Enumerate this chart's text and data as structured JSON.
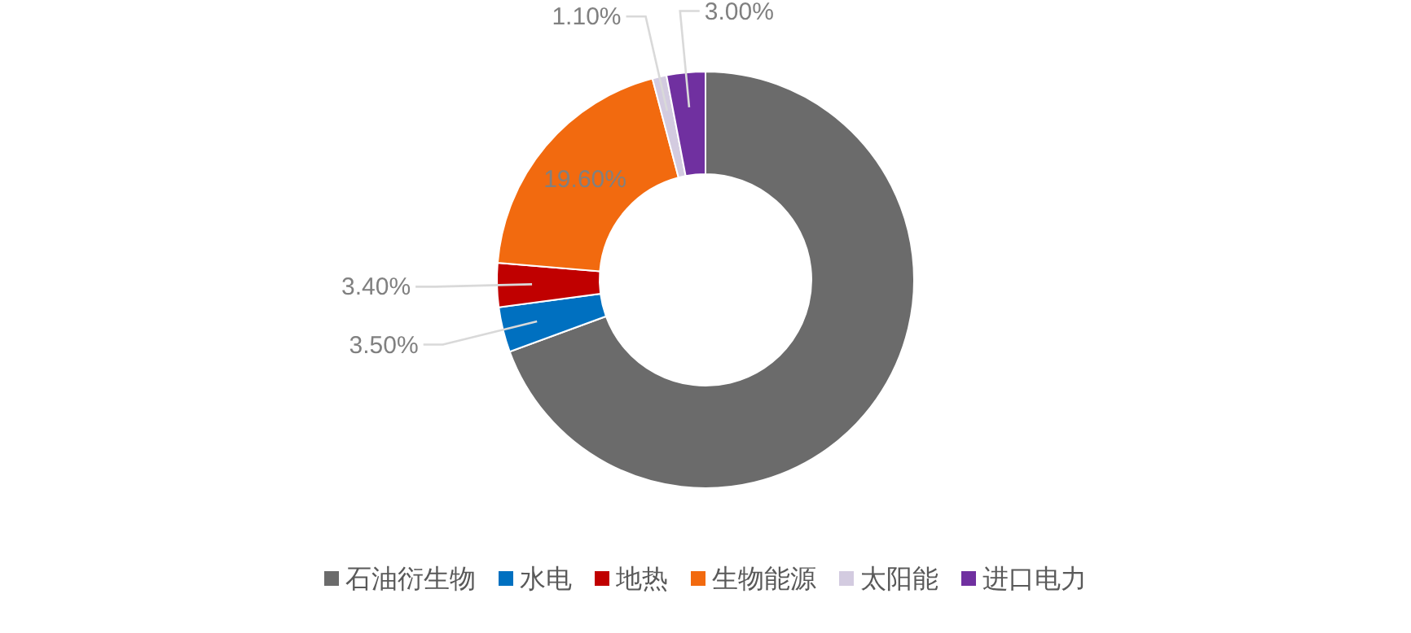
{
  "chart_data": {
    "type": "donut",
    "categories": [
      "石油衍生物",
      "水电",
      "地热",
      "生物能源",
      "太阳能",
      "进口电力"
    ],
    "values": [
      69.4,
      3.5,
      3.4,
      19.6,
      1.1,
      3.0
    ],
    "value_labels": [
      null,
      "3.50%",
      "3.40%",
      "19.60%",
      "1.10%",
      "3.00%"
    ],
    "colors": [
      "#6b6b6b",
      "#0070c0",
      "#c00000",
      "#f26a0f",
      "#d3cbe0",
      "#7030a0"
    ],
    "legend": "bottom"
  }
}
